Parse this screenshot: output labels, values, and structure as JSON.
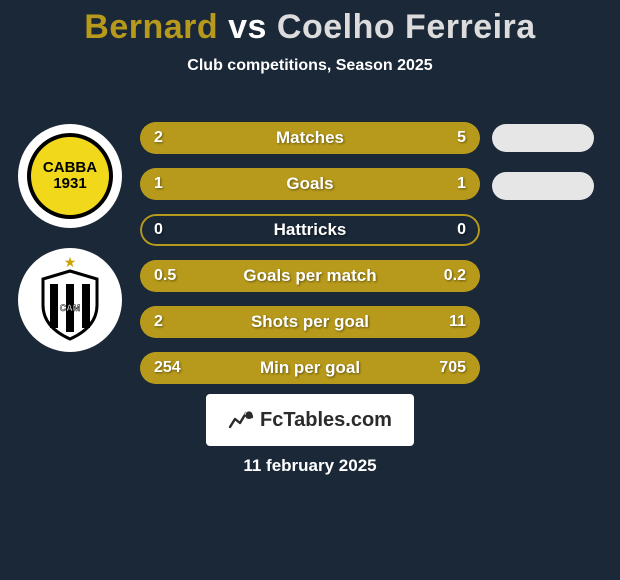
{
  "background_color": "#1a2838",
  "title": {
    "player1": "Bernard",
    "vs": "vs",
    "player2": "Coelho Ferreira",
    "player1_color": "#b79a1b",
    "vs_color": "#ffffff",
    "player2_color": "#dcdcdc"
  },
  "subtitle": "Club competitions, Season 2025",
  "date": "11 february 2025",
  "badges": {
    "player1": {
      "line1": "CABBA",
      "line2": "1931",
      "bg": "#f2d81a",
      "ring": "#ffffff"
    },
    "player2": {
      "ring": "#ffffff"
    }
  },
  "bars": {
    "border_color": "#b79a1b",
    "fill_color": "#b79a1b",
    "border_width": 2,
    "rows": [
      {
        "label": "Matches",
        "left_val": "2",
        "right_val": "5",
        "left_pct": 29,
        "right_pct": 71
      },
      {
        "label": "Goals",
        "left_val": "1",
        "right_val": "1",
        "left_pct": 50,
        "right_pct": 50
      },
      {
        "label": "Hattricks",
        "left_val": "0",
        "right_val": "0",
        "left_pct": 0,
        "right_pct": 0
      },
      {
        "label": "Goals per match",
        "left_val": "0.5",
        "right_val": "0.2",
        "left_pct": 71,
        "right_pct": 29
      },
      {
        "label": "Shots per goal",
        "left_val": "2",
        "right_val": "11",
        "left_pct": 15,
        "right_pct": 85
      },
      {
        "label": "Min per goal",
        "left_val": "254",
        "right_val": "705",
        "left_pct": 26,
        "right_pct": 74
      }
    ]
  },
  "pills": {
    "color": "#e6e6e6",
    "count": 2
  },
  "fctables": {
    "text": "FcTables.com"
  }
}
